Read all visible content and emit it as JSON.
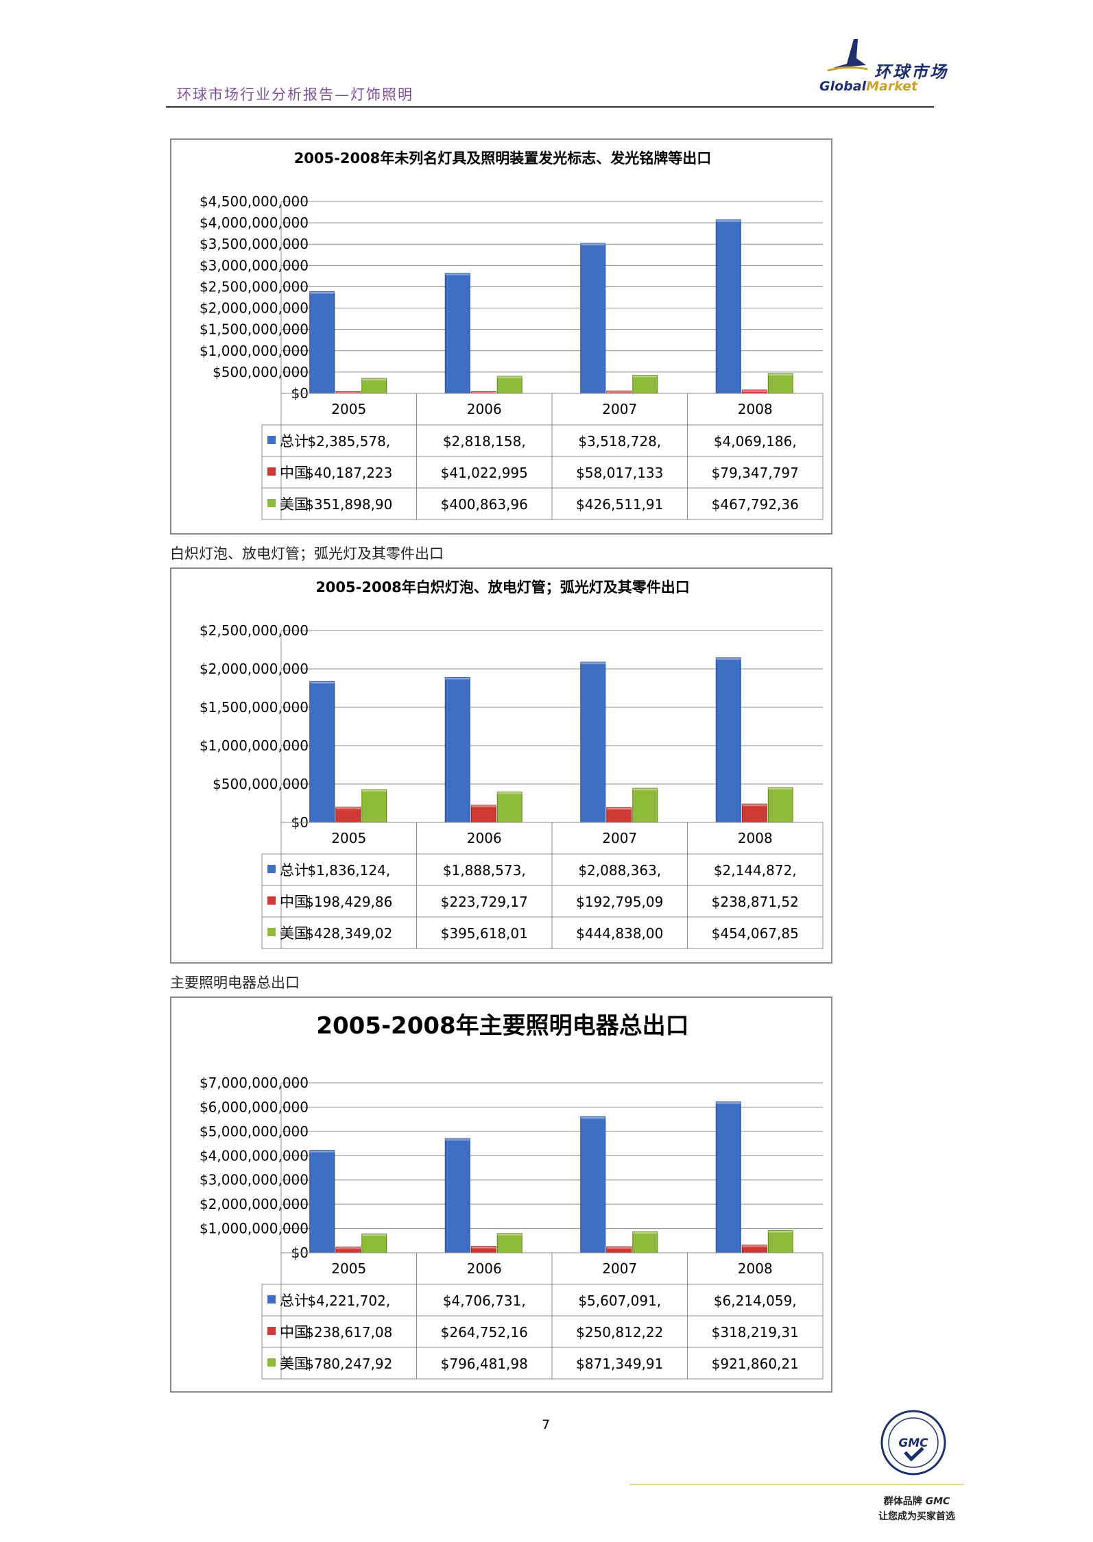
{
  "header": {
    "title": "环球市场行业分析报告—灯饰照明",
    "logo_cn": "环球市场",
    "logo_en_part1": "Global",
    "logo_en_part2": "Market"
  },
  "captions": [
    "白炽灯泡、放电灯管；弧光灯及其零件出口",
    "主要照明电器总出口"
  ],
  "page_number": "7",
  "footer": {
    "line1_a": "群体品牌",
    "line1_b": "GMC",
    "line2": "让您成为买家首选",
    "seal_text": "GMC"
  },
  "colors": {
    "total": "#3f6fc4",
    "china": "#d03a35",
    "usa": "#8fbb3a",
    "grid": "#8c8c8c",
    "accent": "#7b4f96"
  },
  "chart_data": [
    {
      "type": "bar",
      "title": "2005-2008年未列名灯具及照明装置发光标志、发光铭牌等出口",
      "categories": [
        "2005",
        "2006",
        "2007",
        "2008"
      ],
      "ylim": [
        0,
        4500000000
      ],
      "yticks": [
        "$0",
        "$500,000,000",
        "$1,000,000,000",
        "$1,500,000,000",
        "$2,000,000,000",
        "$2,500,000,000",
        "$3,000,000,000",
        "$3,500,000,000",
        "$4,000,000,000",
        "$4,500,000,000"
      ],
      "grid": true,
      "legend": "data-table",
      "series": [
        {
          "name": "总计",
          "values": [
            2385578000,
            2818158000,
            3518728000,
            4069186000
          ],
          "labels": [
            "$2,385,578,",
            "$2,818,158,",
            "$3,518,728,",
            "$4,069,186,"
          ]
        },
        {
          "name": "中国",
          "values": [
            40187223,
            41022995,
            58017133,
            79347797
          ],
          "labels": [
            "$40,187,223",
            "$41,022,995",
            "$58,017,133",
            "$79,347,797"
          ]
        },
        {
          "name": "美国",
          "values": [
            351898900,
            400863960,
            426511910,
            467792360
          ],
          "labels": [
            "$351,898,90",
            "$400,863,96",
            "$426,511,91",
            "$467,792,36"
          ]
        }
      ]
    },
    {
      "type": "bar",
      "title": "2005-2008年白炽灯泡、放电灯管；弧光灯及其零件出口",
      "categories": [
        "2005",
        "2006",
        "2007",
        "2008"
      ],
      "ylim": [
        0,
        2500000000
      ],
      "yticks": [
        "$0",
        "$500,000,000",
        "$1,000,000,000",
        "$1,500,000,000",
        "$2,000,000,000",
        "$2,500,000,000"
      ],
      "grid": true,
      "legend": "data-table",
      "series": [
        {
          "name": "总计",
          "values": [
            1836124000,
            1888573000,
            2088363000,
            2144872000
          ],
          "labels": [
            "$1,836,124,",
            "$1,888,573,",
            "$2,088,363,",
            "$2,144,872,"
          ]
        },
        {
          "name": "中国",
          "values": [
            198429860,
            223729170,
            192795090,
            238871520
          ],
          "labels": [
            "$198,429,86",
            "$223,729,17",
            "$192,795,09",
            "$238,871,52"
          ]
        },
        {
          "name": "美国",
          "values": [
            428349020,
            395618010,
            444838000,
            454067850
          ],
          "labels": [
            "$428,349,02",
            "$395,618,01",
            "$444,838,00",
            "$454,067,85"
          ]
        }
      ]
    },
    {
      "type": "bar",
      "title": "2005-2008年主要照明电器总出口",
      "categories": [
        "2005",
        "2006",
        "2007",
        "2008"
      ],
      "ylim": [
        0,
        7000000000
      ],
      "yticks": [
        "$0",
        "$1,000,000,000",
        "$2,000,000,000",
        "$3,000,000,000",
        "$4,000,000,000",
        "$5,000,000,000",
        "$6,000,000,000",
        "$7,000,000,000"
      ],
      "grid": true,
      "legend": "data-table",
      "series": [
        {
          "name": "总计",
          "values": [
            4221702000,
            4706731000,
            5607091000,
            6214059000
          ],
          "labels": [
            "$4,221,702,",
            "$4,706,731,",
            "$5,607,091,",
            "$6,214,059,"
          ]
        },
        {
          "name": "中国",
          "values": [
            238617080,
            264752160,
            250812220,
            318219310
          ],
          "labels": [
            "$238,617,08",
            "$264,752,16",
            "$250,812,22",
            "$318,219,31"
          ]
        },
        {
          "name": "美国",
          "values": [
            780247920,
            796481980,
            871349910,
            921860210
          ],
          "labels": [
            "$780,247,92",
            "$796,481,98",
            "$871,349,91",
            "$921,860,21"
          ]
        }
      ]
    }
  ]
}
